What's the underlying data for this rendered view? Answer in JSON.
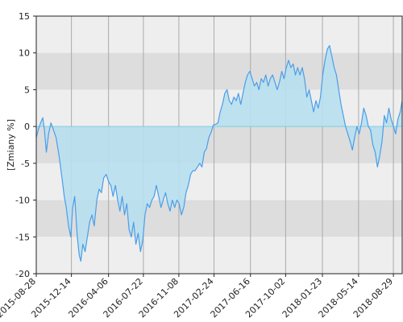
{
  "chart_data": {
    "type": "area",
    "ylabel": "[Zmiany %]",
    "ylim": [
      -20,
      15
    ],
    "yticks": [
      15,
      10,
      5,
      0,
      -5,
      -10,
      -15,
      -20
    ],
    "xlim": [
      "2015-08-28",
      "2018-09-25"
    ],
    "xticks": [
      "2015-08-28",
      "2015-12-14",
      "2016-04-06",
      "2016-07-22",
      "2016-11-08",
      "2017-02-24",
      "2017-06-16",
      "2017-10-02",
      "2018-01-23",
      "2018-05-14",
      "2018-08-29"
    ],
    "grid": true,
    "band_colors": [
      "#eeeeee",
      "#dddddd"
    ],
    "colors": {
      "line": "#4a9ee8",
      "fill": "#b8dff0",
      "zero_line": "#7ecfe0",
      "frame": "#222222",
      "vgrid": "#aaaaaa"
    },
    "series": [
      {
        "points": [
          [
            "2015-08-28",
            -1.5
          ],
          [
            "2015-09-03",
            -0.5
          ],
          [
            "2015-09-10",
            0.5
          ],
          [
            "2015-09-17",
            1.2
          ],
          [
            "2015-09-22",
            -0.5
          ],
          [
            "2015-09-28",
            -3.5
          ],
          [
            "2015-10-05",
            -1.0
          ],
          [
            "2015-10-12",
            0.5
          ],
          [
            "2015-10-20",
            -0.5
          ],
          [
            "2015-10-28",
            -1.5
          ],
          [
            "2015-11-06",
            -4.0
          ],
          [
            "2015-11-15",
            -7.0
          ],
          [
            "2015-11-22",
            -9.5
          ],
          [
            "2015-11-28",
            -11.0
          ],
          [
            "2015-12-05",
            -13.5
          ],
          [
            "2015-12-12",
            -15.0
          ],
          [
            "2015-12-18",
            -11.0
          ],
          [
            "2015-12-24",
            -9.5
          ],
          [
            "2016-01-01",
            -15.0
          ],
          [
            "2016-01-07",
            -17.5
          ],
          [
            "2016-01-12",
            -18.3
          ],
          [
            "2016-01-18",
            -16.0
          ],
          [
            "2016-01-25",
            -17.0
          ],
          [
            "2016-02-01",
            -15.0
          ],
          [
            "2016-02-08",
            -13.0
          ],
          [
            "2016-02-15",
            -12.0
          ],
          [
            "2016-02-22",
            -13.5
          ],
          [
            "2016-03-01",
            -10.0
          ],
          [
            "2016-03-08",
            -8.5
          ],
          [
            "2016-03-15",
            -9.0
          ],
          [
            "2016-03-22",
            -7.0
          ],
          [
            "2016-03-30",
            -6.5
          ],
          [
            "2016-04-06",
            -7.5
          ],
          [
            "2016-04-13",
            -8.0
          ],
          [
            "2016-04-20",
            -9.5
          ],
          [
            "2016-04-27",
            -8.0
          ],
          [
            "2016-05-04",
            -10.0
          ],
          [
            "2016-05-11",
            -11.5
          ],
          [
            "2016-05-18",
            -9.5
          ],
          [
            "2016-05-25",
            -12.0
          ],
          [
            "2016-06-01",
            -10.5
          ],
          [
            "2016-06-08",
            -14.0
          ],
          [
            "2016-06-15",
            -15.0
          ],
          [
            "2016-06-22",
            -13.0
          ],
          [
            "2016-06-29",
            -16.0
          ],
          [
            "2016-07-06",
            -14.5
          ],
          [
            "2016-07-13",
            -17.0
          ],
          [
            "2016-07-20",
            -15.5
          ],
          [
            "2016-07-27",
            -12.0
          ],
          [
            "2016-08-03",
            -10.5
          ],
          [
            "2016-08-10",
            -11.0
          ],
          [
            "2016-08-17",
            -10.0
          ],
          [
            "2016-08-24",
            -9.5
          ],
          [
            "2016-08-31",
            -8.0
          ],
          [
            "2016-09-07",
            -9.5
          ],
          [
            "2016-09-14",
            -11.0
          ],
          [
            "2016-09-21",
            -10.0
          ],
          [
            "2016-09-28",
            -9.0
          ],
          [
            "2016-10-05",
            -10.5
          ],
          [
            "2016-10-12",
            -11.5
          ],
          [
            "2016-10-19",
            -10.0
          ],
          [
            "2016-10-26",
            -11.0
          ],
          [
            "2016-11-02",
            -10.0
          ],
          [
            "2016-11-09",
            -10.5
          ],
          [
            "2016-11-16",
            -12.0
          ],
          [
            "2016-11-23",
            -11.0
          ],
          [
            "2016-11-30",
            -9.0
          ],
          [
            "2016-12-07",
            -8.0
          ],
          [
            "2016-12-14",
            -6.5
          ],
          [
            "2016-12-21",
            -6.0
          ],
          [
            "2016-12-28",
            -6.0
          ],
          [
            "2017-01-04",
            -5.5
          ],
          [
            "2017-01-11",
            -5.0
          ],
          [
            "2017-01-18",
            -5.5
          ],
          [
            "2017-01-25",
            -3.5
          ],
          [
            "2017-02-01",
            -3.0
          ],
          [
            "2017-02-08",
            -1.5
          ],
          [
            "2017-02-15",
            -0.8
          ],
          [
            "2017-02-22",
            0.2
          ],
          [
            "2017-03-01",
            0.3
          ],
          [
            "2017-03-08",
            0.5
          ],
          [
            "2017-03-15",
            2.0
          ],
          [
            "2017-03-22",
            3.0
          ],
          [
            "2017-03-29",
            4.5
          ],
          [
            "2017-04-05",
            5.0
          ],
          [
            "2017-04-12",
            3.5
          ],
          [
            "2017-04-19",
            3.0
          ],
          [
            "2017-04-26",
            4.0
          ],
          [
            "2017-05-03",
            3.5
          ],
          [
            "2017-05-10",
            4.5
          ],
          [
            "2017-05-17",
            3.0
          ],
          [
            "2017-05-24",
            4.5
          ],
          [
            "2017-05-31",
            6.0
          ],
          [
            "2017-06-07",
            7.0
          ],
          [
            "2017-06-14",
            7.5
          ],
          [
            "2017-06-21",
            6.5
          ],
          [
            "2017-06-28",
            5.5
          ],
          [
            "2017-07-05",
            6.0
          ],
          [
            "2017-07-12",
            5.0
          ],
          [
            "2017-07-19",
            6.5
          ],
          [
            "2017-07-26",
            6.0
          ],
          [
            "2017-08-02",
            7.0
          ],
          [
            "2017-08-09",
            5.5
          ],
          [
            "2017-08-16",
            6.5
          ],
          [
            "2017-08-23",
            7.0
          ],
          [
            "2017-08-30",
            6.0
          ],
          [
            "2017-09-06",
            5.0
          ],
          [
            "2017-09-13",
            6.0
          ],
          [
            "2017-09-20",
            7.5
          ],
          [
            "2017-09-27",
            6.5
          ],
          [
            "2017-10-04",
            8.0
          ],
          [
            "2017-10-11",
            9.0
          ],
          [
            "2017-10-18",
            8.0
          ],
          [
            "2017-10-25",
            8.5
          ],
          [
            "2017-11-01",
            7.0
          ],
          [
            "2017-11-08",
            8.0
          ],
          [
            "2017-11-15",
            7.0
          ],
          [
            "2017-11-22",
            8.0
          ],
          [
            "2017-11-29",
            6.5
          ],
          [
            "2017-12-06",
            4.0
          ],
          [
            "2017-12-13",
            5.0
          ],
          [
            "2017-12-20",
            3.5
          ],
          [
            "2017-12-27",
            2.0
          ],
          [
            "2018-01-03",
            3.5
          ],
          [
            "2018-01-10",
            2.5
          ],
          [
            "2018-01-17",
            4.0
          ],
          [
            "2018-01-24",
            7.0
          ],
          [
            "2018-01-31",
            9.0
          ],
          [
            "2018-02-07",
            10.5
          ],
          [
            "2018-02-14",
            11.0
          ],
          [
            "2018-02-21",
            9.5
          ],
          [
            "2018-02-28",
            8.0
          ],
          [
            "2018-03-07",
            7.0
          ],
          [
            "2018-03-14",
            5.0
          ],
          [
            "2018-03-21",
            3.0
          ],
          [
            "2018-03-28",
            1.5
          ],
          [
            "2018-04-04",
            0.0
          ],
          [
            "2018-04-11",
            -1.0
          ],
          [
            "2018-04-18",
            -2.0
          ],
          [
            "2018-04-25",
            -3.2
          ],
          [
            "2018-05-02",
            -1.5
          ],
          [
            "2018-05-09",
            0.0
          ],
          [
            "2018-05-16",
            -1.0
          ],
          [
            "2018-05-23",
            0.5
          ],
          [
            "2018-05-30",
            2.5
          ],
          [
            "2018-06-06",
            1.5
          ],
          [
            "2018-06-13",
            0.0
          ],
          [
            "2018-06-20",
            -0.5
          ],
          [
            "2018-06-27",
            -2.5
          ],
          [
            "2018-07-04",
            -3.5
          ],
          [
            "2018-07-11",
            -5.5
          ],
          [
            "2018-07-18",
            -4.0
          ],
          [
            "2018-07-25",
            -2.0
          ],
          [
            "2018-08-01",
            1.5
          ],
          [
            "2018-08-08",
            0.5
          ],
          [
            "2018-08-15",
            2.5
          ],
          [
            "2018-08-22",
            1.0
          ],
          [
            "2018-08-29",
            0.0
          ],
          [
            "2018-09-05",
            -1.0
          ],
          [
            "2018-09-12",
            1.0
          ],
          [
            "2018-09-19",
            2.0
          ],
          [
            "2018-09-25",
            3.5
          ]
        ]
      }
    ]
  }
}
